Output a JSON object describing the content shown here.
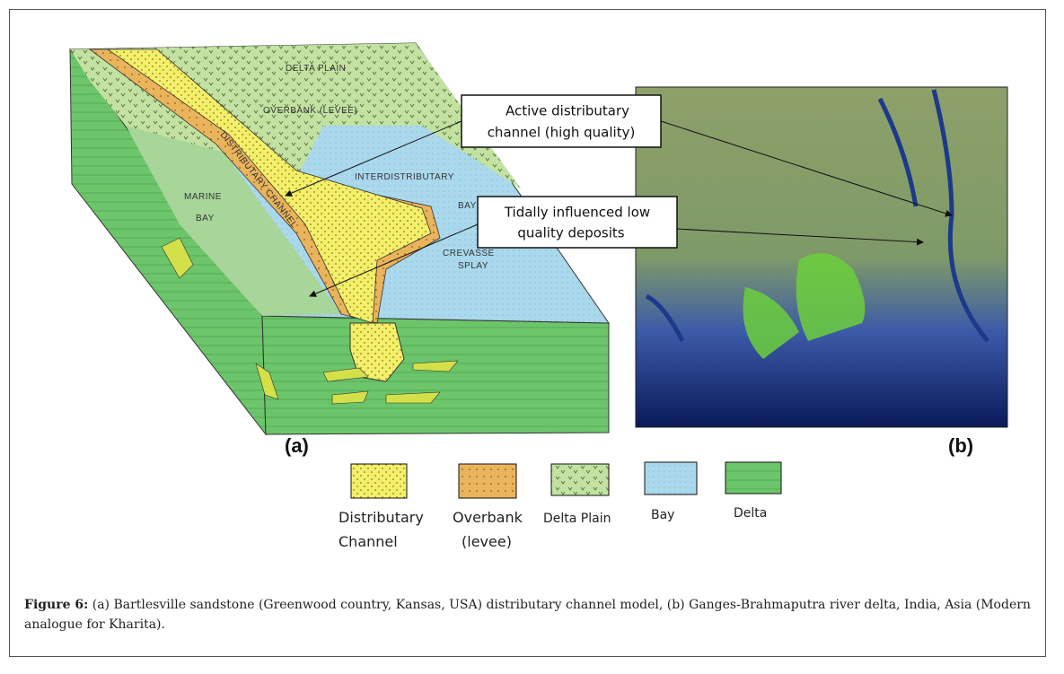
{
  "figure": {
    "panel_a": {
      "labels": {
        "delta_plain": "DELTA PLAIN",
        "overbank": "OVERBANK (LEVEE)",
        "channel": "DISTRIBUTARY CHANNEL",
        "interdistributary": "INTERDISTRIBUTARY",
        "interdistributary_bay": "BAY",
        "marine_bay": [
          "MARINE",
          "BAY"
        ],
        "crevasse_splay": [
          "CREVASSE",
          "SPLAY"
        ]
      },
      "tag": "(a)"
    },
    "panel_b": {
      "tag": "(b)"
    },
    "callouts": [
      {
        "lines": [
          "Active distributary",
          "channel (high quality)"
        ]
      },
      {
        "lines": [
          "Tidally influenced low",
          "quality deposits"
        ]
      }
    ],
    "legend": [
      {
        "lines": [
          "Distributary",
          "Channel"
        ]
      },
      {
        "lines": [
          "Overbank",
          "(levee)"
        ]
      },
      {
        "lines": [
          "Delta Plain"
        ]
      },
      {
        "lines": [
          "Bay"
        ]
      },
      {
        "lines": [
          "Delta"
        ]
      }
    ]
  },
  "caption": {
    "label": "Figure 6:",
    "text": "(a) Bartlesville sandstone (Greenwood country, Kansas, USA) distributary channel model, (b) Ganges-Brahmaputra river delta, India, Asia (Modern analogue for Kharita)."
  }
}
